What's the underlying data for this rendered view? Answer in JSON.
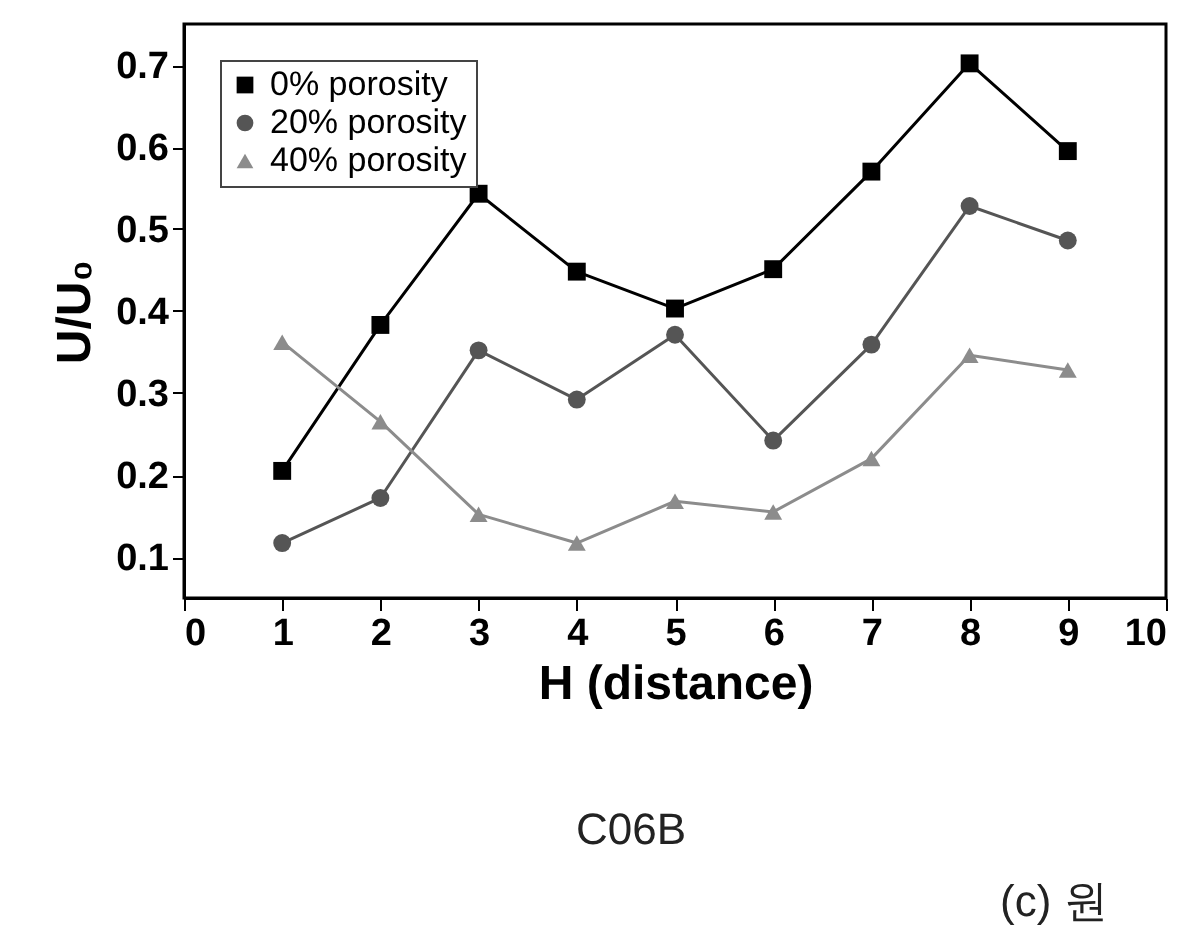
{
  "chart_data": {
    "type": "line",
    "xlabel": "H (distance)",
    "ylabel": "U/U₀",
    "x": [
      1,
      2,
      3,
      4,
      5,
      6,
      7,
      8,
      9
    ],
    "series": [
      {
        "name": "0% porosity",
        "color": "#000000",
        "marker": "square",
        "values": [
          0.205,
          0.383,
          0.543,
          0.448,
          0.403,
          0.451,
          0.57,
          0.702,
          0.595
        ]
      },
      {
        "name": "20% porosity",
        "color": "#555555",
        "marker": "circle",
        "values": [
          0.117,
          0.172,
          0.352,
          0.292,
          0.371,
          0.242,
          0.359,
          0.528,
          0.486
        ]
      },
      {
        "name": "40% porosity",
        "color": "#8c8c8c",
        "marker": "triangle",
        "values": [
          0.362,
          0.265,
          0.152,
          0.117,
          0.168,
          0.155,
          0.22,
          0.346,
          0.328
        ]
      }
    ],
    "xlim": [
      0,
      10
    ],
    "xticks": [
      0,
      1,
      2,
      3,
      4,
      5,
      6,
      7,
      8,
      9,
      10
    ],
    "ylim": [
      0.05,
      0.75
    ],
    "yticks": [
      0.1,
      0.2,
      0.3,
      0.4,
      0.5,
      0.6,
      0.7
    ],
    "grid": false,
    "legend": "top left",
    "line_style": "solid",
    "annotations": [
      "C06B",
      "(c) 원"
    ]
  }
}
